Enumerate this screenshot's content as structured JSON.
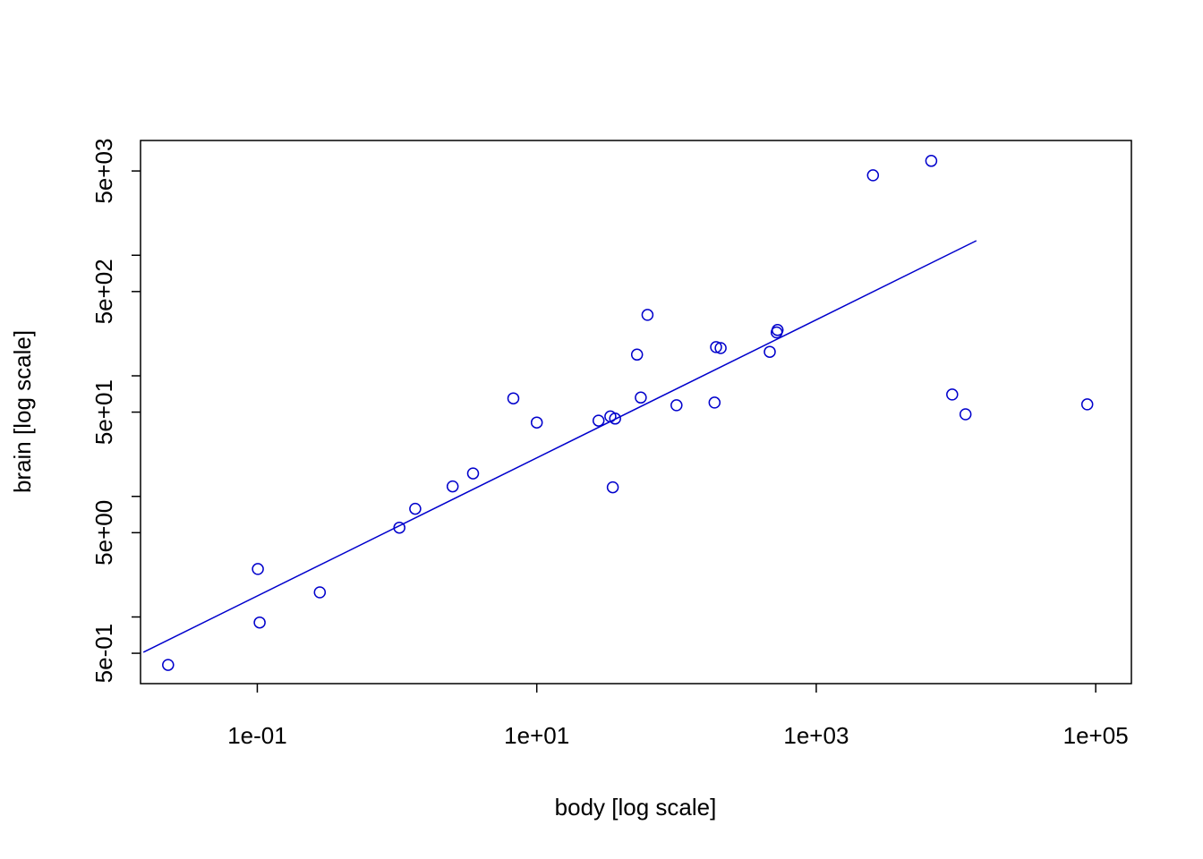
{
  "chart_data": {
    "type": "scatter",
    "title": "",
    "xlabel": "body [log scale]",
    "ylabel": "brain [log scale]",
    "xscale": "log",
    "yscale": "log",
    "xlim": [
      0.0146,
      180000
    ],
    "ylim": [
      0.28,
      8950
    ],
    "grid": false,
    "legend": "none",
    "x_ticks": [
      {
        "value": 0.1,
        "label": "1e-01"
      },
      {
        "value": 10,
        "label": "1e+01"
      },
      {
        "value": 1000,
        "label": "1e+03"
      },
      {
        "value": 100000,
        "label": "1e+05"
      }
    ],
    "y_ticks": [
      0.5,
      1,
      5,
      10,
      50,
      100,
      500,
      1000,
      5000
    ],
    "y_tick_labels": [
      {
        "value": 0.5,
        "label": "5e-01"
      },
      {
        "value": 5,
        "label": "5e+00"
      },
      {
        "value": 50,
        "label": "5e+01"
      },
      {
        "value": 500,
        "label": "5e+02"
      },
      {
        "value": 5000,
        "label": "5e+03"
      }
    ],
    "series": [
      {
        "kind": "points",
        "color": "#0000cc",
        "x": [
          0.023,
          0.104,
          0.101,
          0.28,
          1.04,
          1.35,
          3.5,
          2.5,
          6.8,
          10,
          27.66,
          35,
          36.33,
          33.6,
          52.16,
          55.5,
          62,
          100,
          187.1,
          192,
          207,
          465,
          529,
          521,
          2547,
          6654,
          9400,
          11700,
          87000
        ],
        "y": [
          0.4,
          0.9,
          2.5,
          1.6,
          5.5,
          7.9,
          15.5,
          12.1,
          65,
          41,
          42.5,
          11.9,
          44.2,
          46,
          150,
          66,
          320,
          57,
          60,
          173,
          170,
          158,
          240,
          229,
          4603,
          6060,
          70,
          48,
          58
        ]
      },
      {
        "kind": "fit-line",
        "color": "#0000cc",
        "x": [
          0.0153,
          14000
        ],
        "y": [
          0.51,
          1320
        ]
      }
    ]
  }
}
